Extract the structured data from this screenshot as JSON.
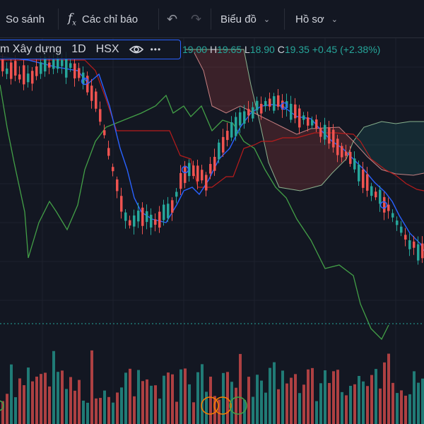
{
  "toolbar": {
    "compare_label": "So sánh",
    "indicators_label": "Các chỉ báo",
    "chart_label": "Biểu đồ",
    "profile_label": "Hồ sơ"
  },
  "legend": {
    "symbol_name": "m Xây dựng",
    "interval": "1D",
    "exchange": "HSX",
    "more": "•••",
    "open_value": "19.00",
    "high_label": "H",
    "high_value": "19.65",
    "low_label": "L",
    "low_value": "18.90",
    "close_label": "C",
    "close_value": "19.35",
    "change": "+0.45 (+2.38%)"
  },
  "colors": {
    "up": "#26a69a",
    "down": "#ef5350",
    "conversion_line": "#2962ff",
    "base_line": "#b71c1c",
    "lagging_span": "#43a047",
    "leading_span_a": "#a5d6a7",
    "leading_span_b": "#ef9a9a",
    "background": "#131722"
  },
  "icons": {
    "indicators": "fx-icon",
    "undo": "undo-icon",
    "redo": "redo-icon",
    "visibility": "eye-icon",
    "menu": "chevron-down-icon"
  }
}
